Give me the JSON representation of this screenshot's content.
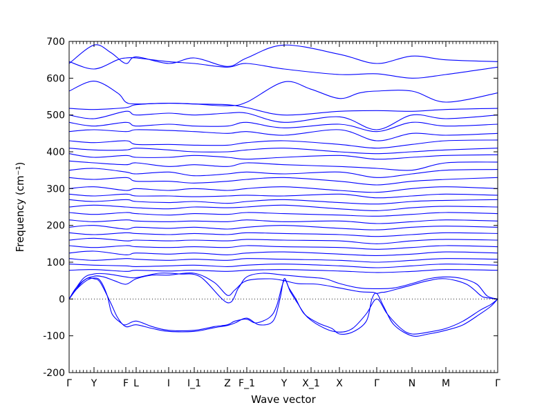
{
  "chart_data": {
    "type": "line",
    "xlabel": "Wave vector",
    "ylabel": "Frequency (cm⁻¹)",
    "ylim": [
      -200,
      700
    ],
    "y_ticks": [
      -200,
      -100,
      0,
      100,
      200,
      300,
      400,
      500,
      600,
      700
    ],
    "x_ticks": [
      {
        "label": "Γ",
        "x": 0
      },
      {
        "label": "Y",
        "x": 36
      },
      {
        "label": "F",
        "x": 82
      },
      {
        "label": "L",
        "x": 97
      },
      {
        "label": "I",
        "x": 144
      },
      {
        "label": "I_1",
        "x": 181
      },
      {
        "label": "Z",
        "x": 229
      },
      {
        "label": "F_1",
        "x": 257
      },
      {
        "label": "Y",
        "x": 311
      },
      {
        "label": "X_1",
        "x": 350
      },
      {
        "label": "X",
        "x": 391
      },
      {
        "label": "Γ",
        "x": 445
      },
      {
        "label": "N",
        "x": 496
      },
      {
        "label": "M",
        "x": 545
      },
      {
        "label": "Γ",
        "x": 620
      }
    ],
    "xlim": [
      0,
      620
    ],
    "zero_line": true,
    "grid": false,
    "line_color": "#0000ff",
    "acoustic_branches": [
      {
        "x": [
          0,
          10,
          25,
          36,
          45,
          55,
          62,
          75,
          82,
          97,
          120,
          144,
          181,
          210,
          229,
          240,
          257,
          270,
          290,
          300,
          311,
          320,
          330,
          345,
          370,
          391,
          410,
          430,
          445,
          460,
          480,
          496,
          520,
          545,
          570,
          595,
          610,
          620
        ],
        "y": [
          0,
          25,
          50,
          57,
          50,
          10,
          -40,
          -65,
          -70,
          -60,
          -75,
          -85,
          -85,
          -75,
          -70,
          -60,
          -55,
          -65,
          -50,
          -20,
          50,
          20,
          -10,
          -50,
          -80,
          -90,
          -80,
          -40,
          0,
          -40,
          -80,
          -95,
          -90,
          -80,
          -60,
          -30,
          -15,
          0
        ]
      },
      {
        "x": [
          0,
          10,
          25,
          36,
          45,
          60,
          70,
          82,
          97,
          120,
          144,
          181,
          210,
          229,
          240,
          257,
          275,
          295,
          305,
          311,
          318,
          328,
          340,
          360,
          380,
          391,
          410,
          430,
          438,
          445,
          455,
          470,
          496,
          520,
          545,
          570,
          595,
          610,
          620
        ],
        "y": [
          0,
          30,
          55,
          55,
          45,
          -10,
          -50,
          -75,
          -70,
          -80,
          -88,
          -88,
          -78,
          -72,
          -65,
          -52,
          -70,
          -60,
          0,
          55,
          30,
          0,
          -40,
          -65,
          -80,
          -95,
          -90,
          -60,
          0,
          15,
          -20,
          -70,
          -100,
          -95,
          -85,
          -70,
          -40,
          -20,
          0
        ]
      },
      {
        "x": [
          0,
          20,
          36,
          50,
          65,
          82,
          97,
          120,
          144,
          181,
          210,
          229,
          240,
          257,
          290,
          311,
          330,
          360,
          391,
          420,
          440,
          445,
          452,
          460,
          490,
          520,
          545,
          575,
          595,
          600,
          610,
          620
        ],
        "y": [
          0,
          48,
          62,
          60,
          50,
          40,
          55,
          65,
          65,
          70,
          45,
          10,
          25,
          50,
          55,
          50,
          42,
          40,
          30,
          20,
          18,
          15,
          18,
          20,
          35,
          50,
          55,
          40,
          10,
          5,
          2,
          0
        ]
      },
      {
        "x": [
          0,
          20,
          36,
          55,
          82,
          97,
          130,
          160,
          190,
          229,
          245,
          257,
          280,
          311,
          340,
          370,
          391,
          420,
          445,
          470,
          496,
          520,
          545,
          570,
          590,
          605,
          620
        ],
        "y": [
          0,
          55,
          68,
          68,
          60,
          58,
          70,
          68,
          60,
          -10,
          30,
          60,
          70,
          65,
          60,
          55,
          42,
          30,
          28,
          30,
          42,
          55,
          60,
          55,
          40,
          8,
          0
        ]
      }
    ],
    "optical_branches": [
      {
        "x": [
          0,
          36,
          60,
          82,
          97,
          144,
          181,
          229,
          257,
          311,
          391,
          445,
          496,
          545,
          620
        ],
        "y": [
          640,
          690,
          670,
          640,
          658,
          640,
          655,
          632,
          655,
          690,
          665,
          640,
          660,
          650,
          645
        ]
      },
      {
        "x": [
          0,
          36,
          70,
          82,
          97,
          144,
          181,
          229,
          257,
          311,
          391,
          445,
          496,
          545,
          620
        ],
        "y": [
          645,
          625,
          650,
          655,
          655,
          645,
          640,
          630,
          640,
          625,
          610,
          612,
          600,
          610,
          630
        ]
      },
      {
        "x": [
          0,
          36,
          70,
          82,
          97,
          144,
          181,
          229,
          257,
          311,
          350,
          391,
          420,
          445,
          496,
          545,
          620
        ],
        "y": [
          565,
          592,
          560,
          535,
          530,
          532,
          530,
          525,
          535,
          590,
          570,
          545,
          560,
          565,
          565,
          535,
          560
        ]
      },
      {
        "x": [
          0,
          36,
          82,
          97,
          144,
          181,
          229,
          257,
          311,
          391,
          445,
          496,
          545,
          620
        ],
        "y": [
          518,
          515,
          520,
          528,
          532,
          530,
          528,
          520,
          500,
          510,
          512,
          510,
          515,
          518
        ]
      },
      {
        "x": [
          0,
          36,
          82,
          97,
          144,
          181,
          229,
          257,
          311,
          391,
          445,
          496,
          545,
          620
        ],
        "y": [
          500,
          490,
          510,
          500,
          505,
          500,
          505,
          505,
          480,
          495,
          460,
          500,
          490,
          500
        ]
      },
      {
        "x": [
          0,
          36,
          82,
          97,
          144,
          181,
          229,
          257,
          311,
          391,
          445,
          496,
          545,
          620
        ],
        "y": [
          480,
          470,
          480,
          470,
          475,
          470,
          470,
          480,
          465,
          475,
          455,
          480,
          470,
          475
        ]
      },
      {
        "x": [
          0,
          36,
          82,
          97,
          144,
          181,
          229,
          257,
          311,
          391,
          445,
          496,
          545,
          620
        ],
        "y": [
          455,
          460,
          455,
          460,
          458,
          455,
          450,
          455,
          445,
          460,
          430,
          450,
          445,
          450
        ]
      },
      {
        "x": [
          0,
          36,
          82,
          97,
          144,
          181,
          229,
          257,
          311,
          391,
          445,
          496,
          545,
          620
        ],
        "y": [
          430,
          425,
          430,
          420,
          420,
          418,
          418,
          425,
          430,
          420,
          410,
          420,
          430,
          432
        ]
      },
      {
        "x": [
          0,
          36,
          82,
          97,
          144,
          181,
          229,
          257,
          311,
          391,
          445,
          496,
          545,
          620
        ],
        "y": [
          410,
          405,
          405,
          410,
          405,
          400,
          400,
          405,
          410,
          400,
          395,
          400,
          405,
          410
        ]
      },
      {
        "x": [
          0,
          36,
          82,
          97,
          144,
          181,
          229,
          257,
          311,
          391,
          445,
          496,
          545,
          620
        ],
        "y": [
          395,
          385,
          390,
          385,
          385,
          390,
          385,
          380,
          385,
          390,
          380,
          385,
          390,
          392
        ]
      },
      {
        "x": [
          0,
          36,
          82,
          97,
          144,
          181,
          229,
          257,
          311,
          391,
          445,
          496,
          545,
          620
        ],
        "y": [
          375,
          370,
          365,
          370,
          360,
          365,
          360,
          370,
          365,
          360,
          355,
          350,
          370,
          372
        ]
      },
      {
        "x": [
          0,
          36,
          82,
          97,
          144,
          181,
          229,
          257,
          311,
          391,
          445,
          496,
          545,
          620
        ],
        "y": [
          350,
          355,
          345,
          340,
          345,
          335,
          340,
          345,
          340,
          345,
          330,
          340,
          350,
          352
        ]
      },
      {
        "x": [
          0,
          36,
          82,
          97,
          144,
          181,
          229,
          257,
          311,
          391,
          445,
          496,
          545,
          620
        ],
        "y": [
          330,
          325,
          330,
          320,
          320,
          315,
          320,
          325,
          330,
          320,
          310,
          320,
          325,
          330
        ]
      },
      {
        "x": [
          0,
          36,
          82,
          97,
          144,
          181,
          229,
          257,
          311,
          391,
          445,
          496,
          545,
          620
        ],
        "y": [
          300,
          305,
          295,
          300,
          295,
          300,
          295,
          300,
          305,
          295,
          290,
          300,
          305,
          300
        ]
      },
      {
        "x": [
          0,
          36,
          82,
          97,
          144,
          181,
          229,
          257,
          311,
          391,
          445,
          496,
          545,
          620
        ],
        "y": [
          285,
          280,
          285,
          280,
          280,
          278,
          280,
          282,
          280,
          285,
          275,
          280,
          285,
          282
        ]
      },
      {
        "x": [
          0,
          36,
          82,
          97,
          144,
          181,
          229,
          257,
          311,
          391,
          445,
          496,
          545,
          620
        ],
        "y": [
          270,
          265,
          270,
          265,
          262,
          265,
          260,
          265,
          270,
          262,
          258,
          265,
          268,
          270
        ]
      },
      {
        "x": [
          0,
          36,
          82,
          97,
          144,
          181,
          229,
          257,
          311,
          391,
          445,
          496,
          545,
          620
        ],
        "y": [
          250,
          255,
          250,
          248,
          245,
          250,
          248,
          250,
          255,
          245,
          240,
          248,
          252,
          250
        ]
      },
      {
        "x": [
          0,
          36,
          82,
          97,
          144,
          181,
          229,
          257,
          311,
          391,
          445,
          496,
          545,
          620
        ],
        "y": [
          235,
          230,
          235,
          232,
          228,
          232,
          230,
          235,
          232,
          228,
          225,
          230,
          235,
          232
        ]
      },
      {
        "x": [
          0,
          36,
          82,
          97,
          144,
          181,
          229,
          257,
          311,
          391,
          445,
          496,
          545,
          620
        ],
        "y": [
          215,
          210,
          215,
          212,
          210,
          212,
          210,
          215,
          210,
          212,
          205,
          210,
          215,
          212
        ]
      },
      {
        "x": [
          0,
          36,
          82,
          97,
          144,
          181,
          229,
          257,
          311,
          391,
          445,
          496,
          545,
          620
        ],
        "y": [
          195,
          200,
          190,
          195,
          192,
          195,
          190,
          195,
          200,
          192,
          188,
          195,
          198,
          195
        ]
      },
      {
        "x": [
          0,
          36,
          82,
          97,
          144,
          181,
          229,
          257,
          311,
          391,
          445,
          496,
          545,
          620
        ],
        "y": [
          180,
          175,
          180,
          178,
          175,
          178,
          175,
          180,
          178,
          175,
          170,
          175,
          180,
          178
        ]
      },
      {
        "x": [
          0,
          36,
          82,
          97,
          144,
          181,
          229,
          257,
          311,
          391,
          445,
          496,
          545,
          620
        ],
        "y": [
          160,
          165,
          158,
          160,
          158,
          160,
          158,
          162,
          160,
          158,
          150,
          158,
          162,
          160
        ]
      },
      {
        "x": [
          0,
          36,
          82,
          97,
          144,
          181,
          229,
          257,
          311,
          391,
          445,
          496,
          545,
          620
        ],
        "y": [
          145,
          140,
          145,
          142,
          140,
          142,
          140,
          145,
          142,
          140,
          135,
          140,
          145,
          142
        ]
      },
      {
        "x": [
          0,
          36,
          82,
          97,
          144,
          181,
          229,
          257,
          311,
          391,
          445,
          496,
          545,
          620
        ],
        "y": [
          125,
          130,
          120,
          125,
          122,
          125,
          120,
          125,
          128,
          122,
          118,
          122,
          128,
          125
        ]
      },
      {
        "x": [
          0,
          36,
          82,
          97,
          144,
          181,
          229,
          257,
          311,
          391,
          445,
          496,
          545,
          620
        ],
        "y": [
          110,
          105,
          110,
          108,
          105,
          108,
          105,
          110,
          108,
          105,
          100,
          105,
          110,
          108
        ]
      },
      {
        "x": [
          0,
          36,
          82,
          97,
          144,
          181,
          229,
          257,
          311,
          391,
          445,
          496,
          545,
          620
        ],
        "y": [
          95,
          92,
          90,
          88,
          90,
          92,
          88,
          92,
          95,
          90,
          85,
          90,
          95,
          92
        ]
      },
      {
        "x": [
          0,
          36,
          82,
          97,
          144,
          181,
          229,
          257,
          311,
          391,
          445,
          496,
          545,
          620
        ],
        "y": [
          78,
          80,
          75,
          78,
          76,
          78,
          75,
          78,
          80,
          76,
          72,
          75,
          80,
          78
        ]
      }
    ]
  }
}
